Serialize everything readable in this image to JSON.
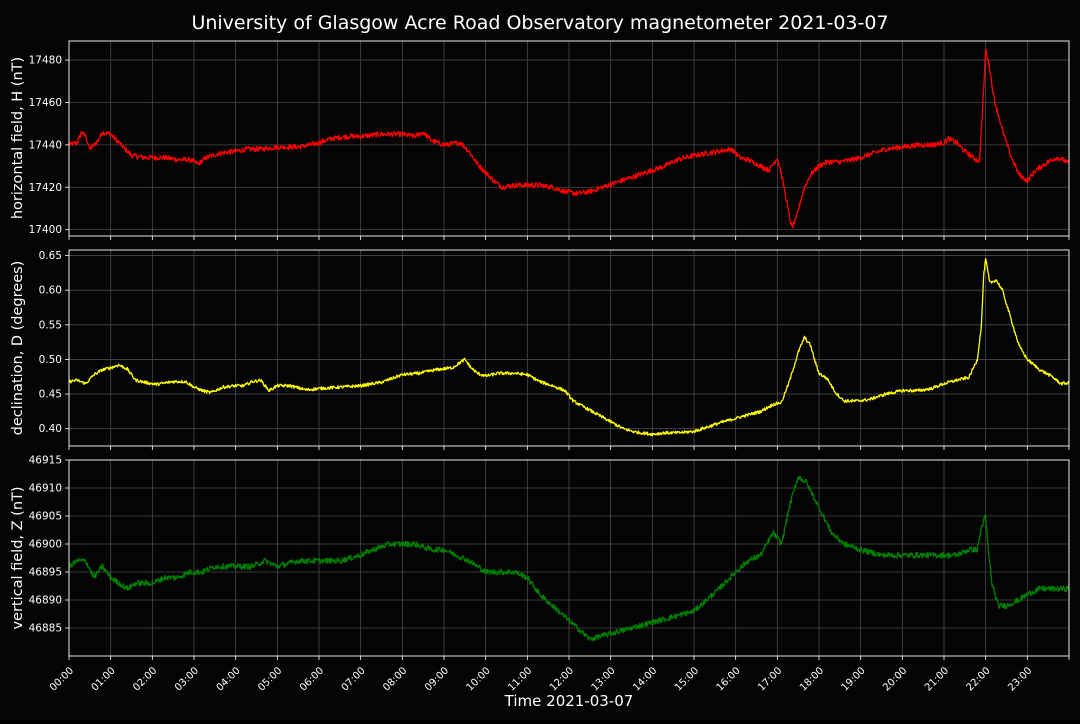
{
  "title": "University of Glasgow Acre Road Observatory magnetometer 2021-03-07",
  "chart_data": {
    "type": "line",
    "title": "University of Glasgow Acre Road Observatory magnetometer 2021-03-07",
    "xlabel": "Time 2021-03-07",
    "x_tick_labels": [
      "00:00",
      "01:00",
      "02:00",
      "03:00",
      "04:00",
      "05:00",
      "06:00",
      "07:00",
      "08:00",
      "09:00",
      "10:00",
      "11:00",
      "12:00",
      "13:00",
      "14:00",
      "15:00",
      "16:00",
      "17:00",
      "18:00",
      "19:00",
      "20:00",
      "21:00",
      "22:00",
      "23:00"
    ],
    "x_unit": "hours since 00:00 on 2021-03-07",
    "xlim": [
      0,
      24
    ],
    "grid": true,
    "colors": {
      "background": "#040404",
      "grid": "#4a4a4a",
      "axis": "#ffffff",
      "text": "#ffffff"
    },
    "panels": [
      {
        "name": "H",
        "ylabel": "horizontal field, H (nT)",
        "color": "#ff0000",
        "ylim": [
          17397,
          17489
        ],
        "yticks": [
          17400,
          17420,
          17440,
          17460,
          17480
        ],
        "tick_format": "int",
        "noise": 1.2,
        "points": [
          [
            0.0,
            17440
          ],
          [
            0.2,
            17441
          ],
          [
            0.3,
            17446
          ],
          [
            0.4,
            17444
          ],
          [
            0.5,
            17438
          ],
          [
            0.7,
            17442
          ],
          [
            0.8,
            17446
          ],
          [
            1.0,
            17445
          ],
          [
            1.2,
            17441
          ],
          [
            1.5,
            17435
          ],
          [
            1.8,
            17434
          ],
          [
            2.0,
            17434
          ],
          [
            2.3,
            17434
          ],
          [
            2.6,
            17433
          ],
          [
            2.9,
            17433
          ],
          [
            3.1,
            17431
          ],
          [
            3.3,
            17434
          ],
          [
            3.6,
            17436
          ],
          [
            4.0,
            17437
          ],
          [
            4.3,
            17438
          ],
          [
            4.6,
            17438
          ],
          [
            5.0,
            17439
          ],
          [
            5.5,
            17439
          ],
          [
            5.8,
            17440
          ],
          [
            6.0,
            17441
          ],
          [
            6.3,
            17443
          ],
          [
            6.7,
            17444
          ],
          [
            7.0,
            17444
          ],
          [
            7.5,
            17445
          ],
          [
            8.0,
            17445
          ],
          [
            8.3,
            17444
          ],
          [
            8.5,
            17446
          ],
          [
            8.7,
            17442
          ],
          [
            9.0,
            17440
          ],
          [
            9.4,
            17441
          ],
          [
            9.6,
            17437
          ],
          [
            9.8,
            17431
          ],
          [
            10.0,
            17427
          ],
          [
            10.2,
            17423
          ],
          [
            10.4,
            17420
          ],
          [
            10.7,
            17421
          ],
          [
            11.0,
            17421
          ],
          [
            11.3,
            17421
          ],
          [
            11.6,
            17420
          ],
          [
            11.9,
            17418
          ],
          [
            12.2,
            17417
          ],
          [
            12.5,
            17418
          ],
          [
            12.8,
            17420
          ],
          [
            13.1,
            17422
          ],
          [
            13.4,
            17424
          ],
          [
            13.7,
            17426
          ],
          [
            14.0,
            17428
          ],
          [
            14.3,
            17430
          ],
          [
            14.6,
            17433
          ],
          [
            15.0,
            17435
          ],
          [
            15.3,
            17436
          ],
          [
            15.6,
            17437
          ],
          [
            15.9,
            17438
          ],
          [
            16.1,
            17434
          ],
          [
            16.3,
            17433
          ],
          [
            16.6,
            17430
          ],
          [
            16.8,
            17428
          ],
          [
            16.9,
            17431
          ],
          [
            17.0,
            17434
          ],
          [
            17.1,
            17426
          ],
          [
            17.2,
            17416
          ],
          [
            17.3,
            17405
          ],
          [
            17.35,
            17401
          ],
          [
            17.45,
            17405
          ],
          [
            17.55,
            17413
          ],
          [
            17.65,
            17420
          ],
          [
            17.8,
            17426
          ],
          [
            18.0,
            17430
          ],
          [
            18.2,
            17432
          ],
          [
            18.5,
            17432
          ],
          [
            18.8,
            17433
          ],
          [
            19.0,
            17434
          ],
          [
            19.3,
            17436
          ],
          [
            19.6,
            17438
          ],
          [
            20.0,
            17439
          ],
          [
            20.4,
            17440
          ],
          [
            20.7,
            17440
          ],
          [
            21.0,
            17441
          ],
          [
            21.1,
            17443
          ],
          [
            21.3,
            17441
          ],
          [
            21.5,
            17437
          ],
          [
            21.7,
            17434
          ],
          [
            21.85,
            17432
          ],
          [
            21.93,
            17458
          ],
          [
            22.0,
            17485
          ],
          [
            22.08,
            17478
          ],
          [
            22.2,
            17462
          ],
          [
            22.4,
            17447
          ],
          [
            22.6,
            17435
          ],
          [
            22.8,
            17426
          ],
          [
            23.0,
            17423
          ],
          [
            23.2,
            17428
          ],
          [
            23.5,
            17432
          ],
          [
            23.7,
            17434
          ],
          [
            23.85,
            17433
          ],
          [
            24.0,
            17431
          ]
        ]
      },
      {
        "name": "D",
        "ylabel": "declination, D (degrees)",
        "color": "#ffff00",
        "ylim": [
          0.375,
          0.658
        ],
        "yticks": [
          0.4,
          0.45,
          0.5,
          0.55,
          0.6,
          0.65
        ],
        "tick_format": "2dp",
        "noise": 0.0022,
        "points": [
          [
            0.0,
            0.468
          ],
          [
            0.2,
            0.47
          ],
          [
            0.4,
            0.465
          ],
          [
            0.6,
            0.478
          ],
          [
            0.8,
            0.485
          ],
          [
            1.0,
            0.488
          ],
          [
            1.2,
            0.492
          ],
          [
            1.4,
            0.486
          ],
          [
            1.6,
            0.47
          ],
          [
            1.9,
            0.466
          ],
          [
            2.1,
            0.464
          ],
          [
            2.5,
            0.468
          ],
          [
            2.8,
            0.468
          ],
          [
            3.0,
            0.46
          ],
          [
            3.2,
            0.455
          ],
          [
            3.4,
            0.452
          ],
          [
            3.7,
            0.46
          ],
          [
            4.0,
            0.462
          ],
          [
            4.2,
            0.462
          ],
          [
            4.4,
            0.468
          ],
          [
            4.6,
            0.47
          ],
          [
            4.8,
            0.455
          ],
          [
            5.0,
            0.462
          ],
          [
            5.3,
            0.462
          ],
          [
            5.7,
            0.456
          ],
          [
            6.0,
            0.458
          ],
          [
            6.5,
            0.46
          ],
          [
            7.0,
            0.462
          ],
          [
            7.5,
            0.467
          ],
          [
            8.0,
            0.478
          ],
          [
            8.4,
            0.48
          ],
          [
            8.8,
            0.485
          ],
          [
            9.2,
            0.488
          ],
          [
            9.5,
            0.5
          ],
          [
            9.65,
            0.488
          ],
          [
            9.8,
            0.48
          ],
          [
            10.0,
            0.476
          ],
          [
            10.3,
            0.48
          ],
          [
            10.7,
            0.48
          ],
          [
            11.0,
            0.478
          ],
          [
            11.3,
            0.468
          ],
          [
            11.6,
            0.462
          ],
          [
            11.9,
            0.455
          ],
          [
            12.1,
            0.44
          ],
          [
            12.4,
            0.43
          ],
          [
            12.7,
            0.42
          ],
          [
            13.0,
            0.41
          ],
          [
            13.3,
            0.4
          ],
          [
            13.6,
            0.395
          ],
          [
            14.0,
            0.392
          ],
          [
            14.3,
            0.394
          ],
          [
            14.6,
            0.394
          ],
          [
            15.0,
            0.396
          ],
          [
            15.3,
            0.402
          ],
          [
            15.6,
            0.408
          ],
          [
            16.0,
            0.415
          ],
          [
            16.3,
            0.42
          ],
          [
            16.6,
            0.425
          ],
          [
            16.9,
            0.435
          ],
          [
            17.1,
            0.438
          ],
          [
            17.3,
            0.47
          ],
          [
            17.5,
            0.51
          ],
          [
            17.65,
            0.532
          ],
          [
            17.8,
            0.52
          ],
          [
            17.9,
            0.498
          ],
          [
            18.0,
            0.48
          ],
          [
            18.2,
            0.472
          ],
          [
            18.4,
            0.452
          ],
          [
            18.6,
            0.44
          ],
          [
            18.9,
            0.44
          ],
          [
            19.2,
            0.442
          ],
          [
            19.6,
            0.45
          ],
          [
            20.0,
            0.455
          ],
          [
            20.4,
            0.455
          ],
          [
            20.7,
            0.458
          ],
          [
            21.0,
            0.465
          ],
          [
            21.3,
            0.47
          ],
          [
            21.6,
            0.474
          ],
          [
            21.8,
            0.5
          ],
          [
            21.9,
            0.55
          ],
          [
            21.95,
            0.62
          ],
          [
            22.0,
            0.645
          ],
          [
            22.1,
            0.61
          ],
          [
            22.25,
            0.615
          ],
          [
            22.4,
            0.6
          ],
          [
            22.6,
            0.56
          ],
          [
            22.8,
            0.52
          ],
          [
            23.0,
            0.5
          ],
          [
            23.3,
            0.485
          ],
          [
            23.6,
            0.475
          ],
          [
            23.8,
            0.465
          ],
          [
            24.0,
            0.466
          ]
        ]
      },
      {
        "name": "Z",
        "ylabel": "vertical field, Z (nT)",
        "color": "#008000",
        "ylim": [
          46880,
          46915
        ],
        "yticks": [
          46885,
          46890,
          46895,
          46900,
          46905,
          46910,
          46915
        ],
        "tick_format": "int",
        "noise": 0.5,
        "points": [
          [
            0.0,
            46896
          ],
          [
            0.2,
            46897
          ],
          [
            0.4,
            46897
          ],
          [
            0.6,
            46894
          ],
          [
            0.8,
            46896
          ],
          [
            1.0,
            46894
          ],
          [
            1.2,
            46893
          ],
          [
            1.4,
            46892
          ],
          [
            1.6,
            46893
          ],
          [
            2.0,
            46893
          ],
          [
            2.3,
            46894
          ],
          [
            2.6,
            46894
          ],
          [
            2.9,
            46895
          ],
          [
            3.2,
            46895
          ],
          [
            3.5,
            46896
          ],
          [
            4.0,
            46896
          ],
          [
            4.4,
            46896
          ],
          [
            4.7,
            46897
          ],
          [
            5.0,
            46896
          ],
          [
            5.5,
            46897
          ],
          [
            6.0,
            46897
          ],
          [
            6.5,
            46897
          ],
          [
            7.0,
            46898
          ],
          [
            7.3,
            46899
          ],
          [
            7.7,
            46900
          ],
          [
            8.0,
            46900
          ],
          [
            8.3,
            46900
          ],
          [
            8.7,
            46899
          ],
          [
            9.0,
            46899
          ],
          [
            9.3,
            46898
          ],
          [
            9.6,
            46897
          ],
          [
            10.0,
            46895
          ],
          [
            10.3,
            46895
          ],
          [
            10.7,
            46895
          ],
          [
            11.0,
            46894
          ],
          [
            11.3,
            46891
          ],
          [
            11.6,
            46889
          ],
          [
            11.9,
            46887
          ],
          [
            12.2,
            46885
          ],
          [
            12.5,
            46883
          ],
          [
            13.0,
            46884
          ],
          [
            13.5,
            46885
          ],
          [
            14.0,
            46886
          ],
          [
            14.5,
            46887
          ],
          [
            15.0,
            46888
          ],
          [
            15.3,
            46890
          ],
          [
            15.6,
            46892
          ],
          [
            16.0,
            46895
          ],
          [
            16.3,
            46897
          ],
          [
            16.6,
            46898
          ],
          [
            16.9,
            46902
          ],
          [
            17.1,
            46900
          ],
          [
            17.3,
            46907
          ],
          [
            17.5,
            46912
          ],
          [
            17.7,
            46911
          ],
          [
            17.9,
            46908
          ],
          [
            18.1,
            46905
          ],
          [
            18.3,
            46902
          ],
          [
            18.6,
            46900
          ],
          [
            19.0,
            46899
          ],
          [
            19.5,
            46898
          ],
          [
            20.0,
            46898
          ],
          [
            20.5,
            46898
          ],
          [
            21.0,
            46898
          ],
          [
            21.3,
            46898
          ],
          [
            21.6,
            46899
          ],
          [
            21.8,
            46899
          ],
          [
            21.9,
            46903
          ],
          [
            22.0,
            46905
          ],
          [
            22.05,
            46900
          ],
          [
            22.15,
            46893
          ],
          [
            22.3,
            46889
          ],
          [
            22.5,
            46889
          ],
          [
            22.8,
            46890
          ],
          [
            23.0,
            46891
          ],
          [
            23.3,
            46892
          ],
          [
            23.6,
            46892
          ],
          [
            23.8,
            46892
          ],
          [
            24.0,
            46892
          ]
        ]
      }
    ]
  }
}
